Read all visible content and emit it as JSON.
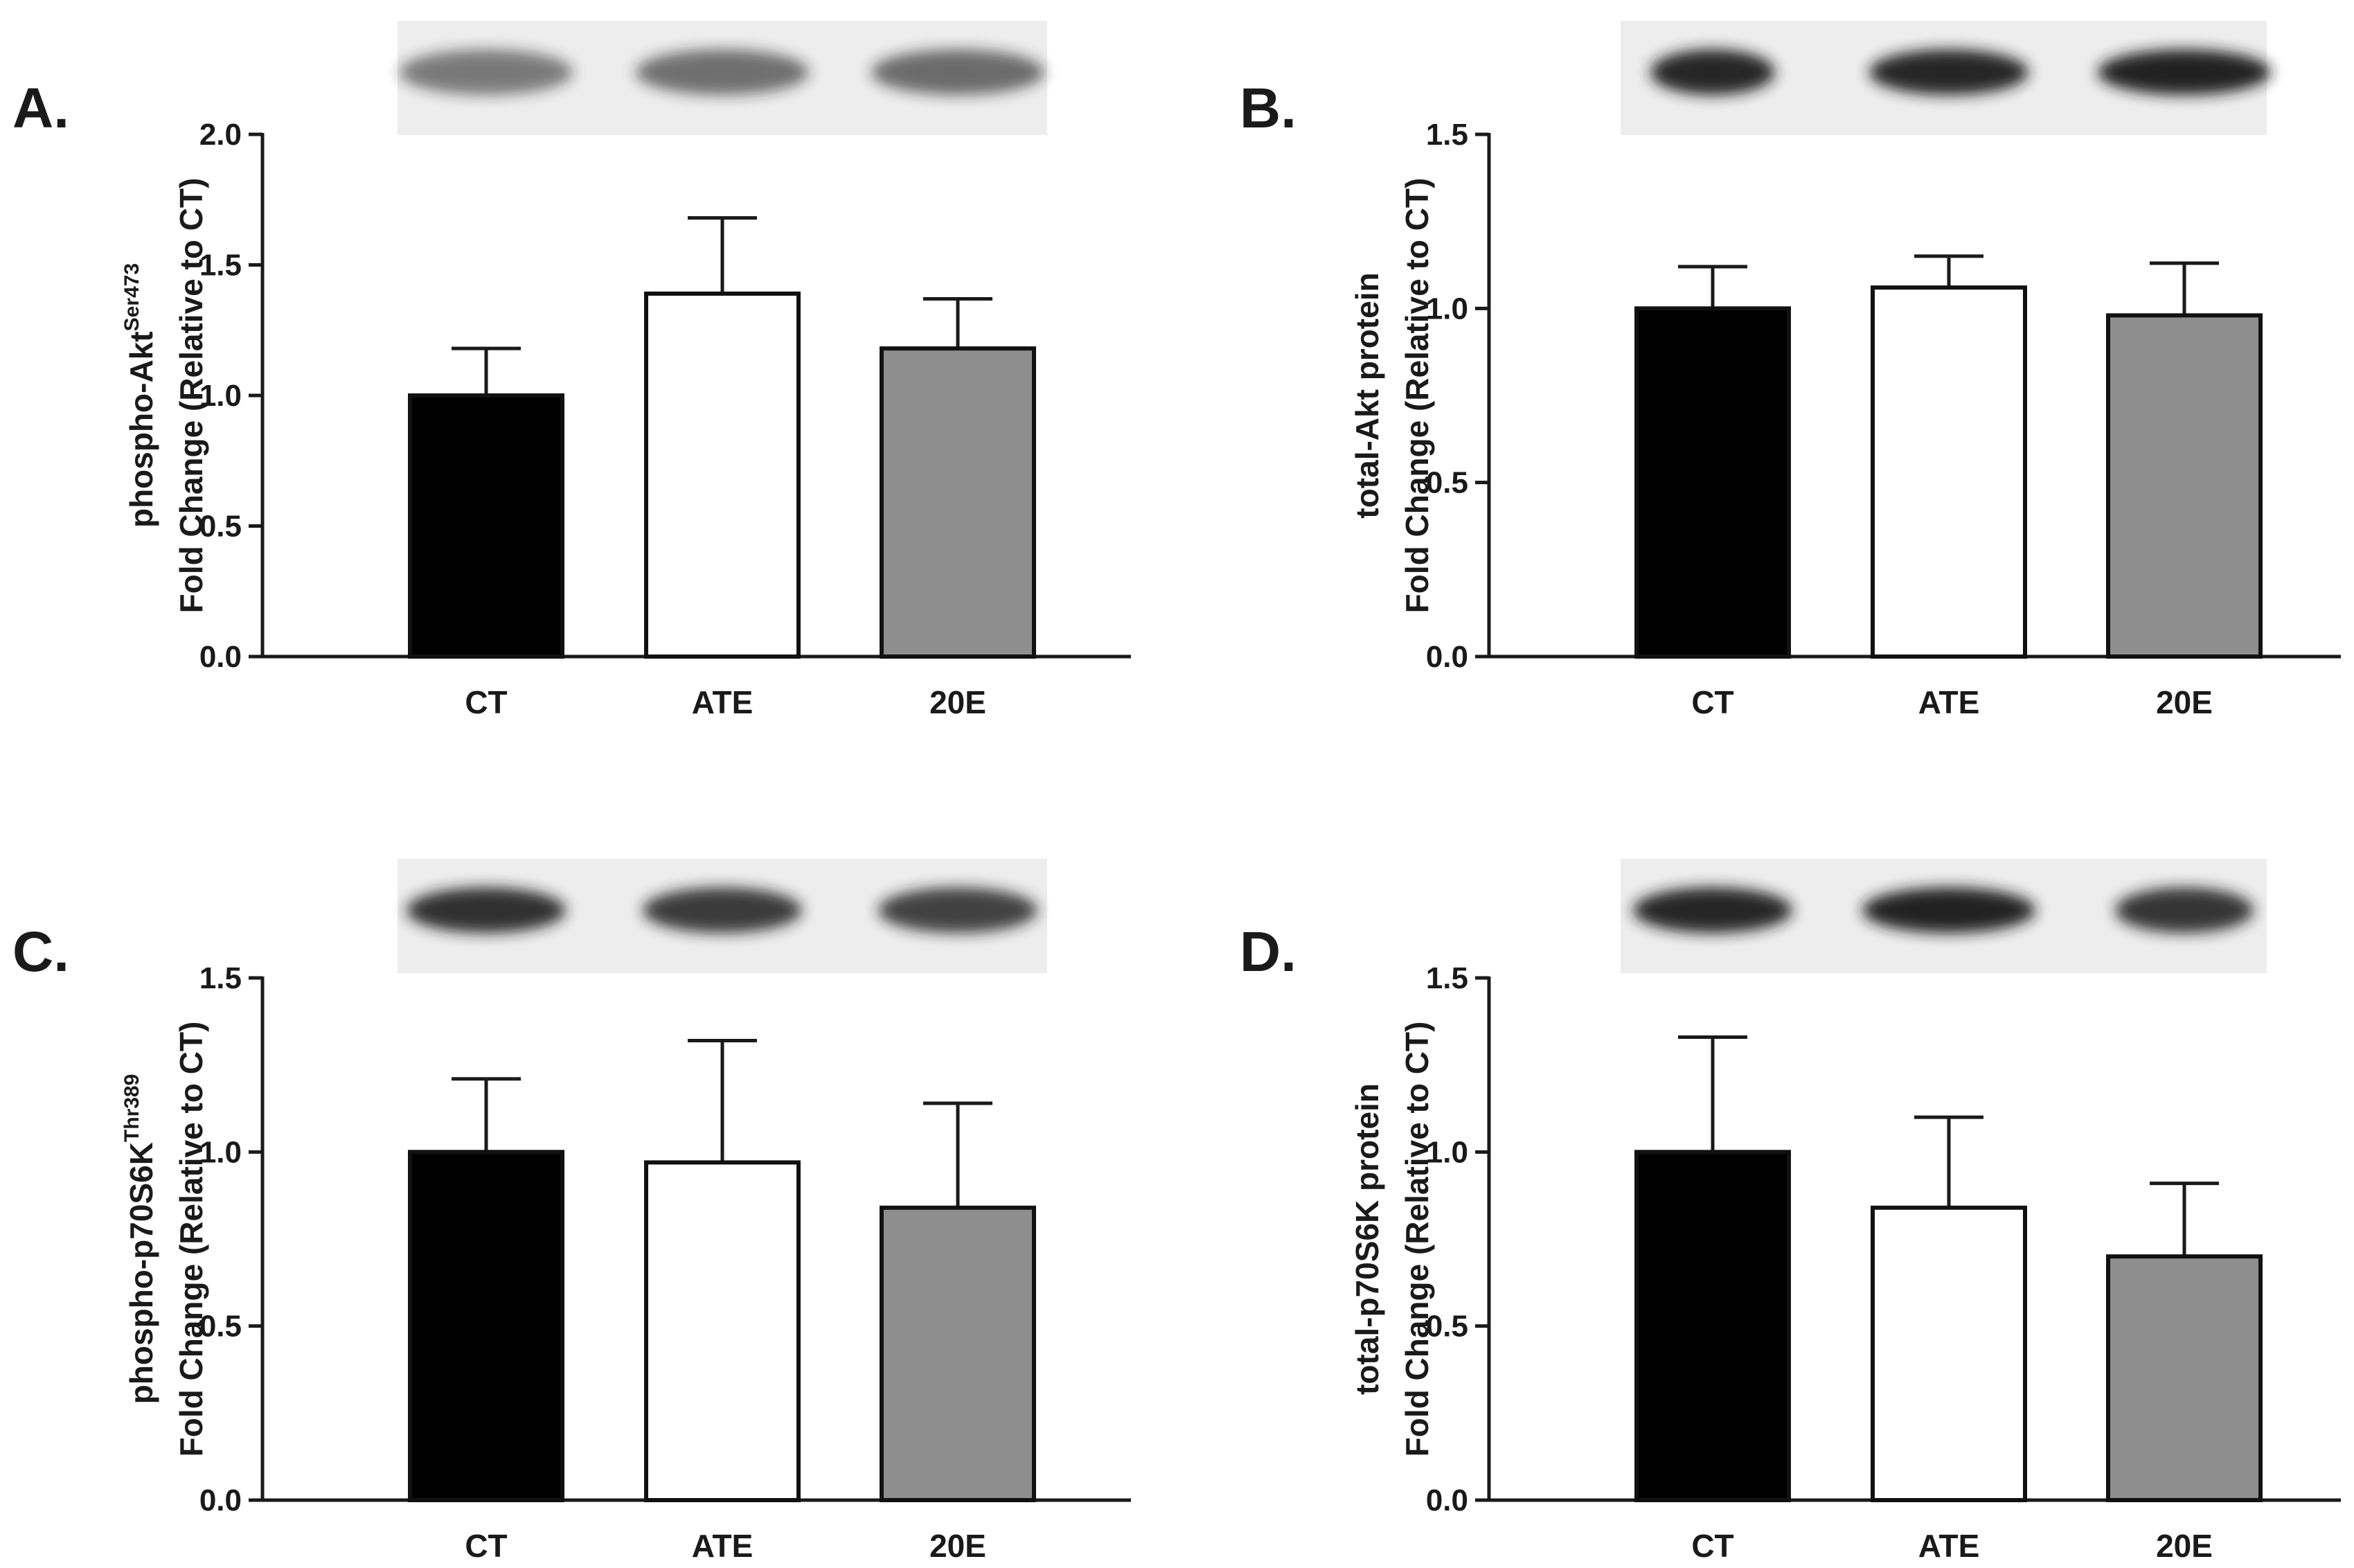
{
  "colors": {
    "CT": "#000000",
    "ATE": "#ffffff",
    "20E": "#8e8e8e",
    "blot_background": "#ededed",
    "blot_band": "#1c1c1c"
  },
  "chart_data": [
    {
      "type": "bar",
      "panel": "A.",
      "ylabel_line1": "phospho-Akt",
      "ylabel_line1_sup": "Ser473",
      "ylabel_line2": "Fold Change (Relative to CT)",
      "categories": [
        "CT",
        "ATE",
        "20E"
      ],
      "values": [
        1.0,
        1.39,
        1.18
      ],
      "errors": [
        0.18,
        0.29,
        0.19
      ],
      "ylim": [
        0,
        2.0
      ],
      "yticks": [
        "0.0",
        "0.5",
        "1.0",
        "1.5",
        "2.0"
      ],
      "blot_intensity": [
        0.55,
        0.6,
        0.62
      ]
    },
    {
      "type": "bar",
      "panel": "B.",
      "ylabel_line1": "total-Akt protein",
      "ylabel_line1_sup": "",
      "ylabel_line2": "Fold Change (Relative to CT)",
      "categories": [
        "CT",
        "ATE",
        "20E"
      ],
      "values": [
        1.0,
        1.06,
        0.98
      ],
      "errors": [
        0.12,
        0.09,
        0.15
      ],
      "ylim": [
        0,
        1.5
      ],
      "yticks": [
        "0.0",
        "0.5",
        "1.0",
        "1.5"
      ],
      "blot_intensity": [
        0.95,
        0.95,
        0.97
      ]
    },
    {
      "type": "bar",
      "panel": "C.",
      "ylabel_line1": "phospho-p70S6K",
      "ylabel_line1_sup": "Thr389",
      "ylabel_line2": "Fold Change (Relative to CT)",
      "categories": [
        "CT",
        "ATE",
        "20E"
      ],
      "values": [
        1.0,
        0.97,
        0.84
      ],
      "errors": [
        0.21,
        0.35,
        0.3
      ],
      "ylim": [
        0,
        1.5
      ],
      "yticks": [
        "0.0",
        "0.5",
        "1.0",
        "1.5"
      ],
      "blot_intensity": [
        0.9,
        0.85,
        0.82
      ]
    },
    {
      "type": "bar",
      "panel": "D.",
      "ylabel_line1": "total-p70S6K protein",
      "ylabel_line1_sup": "",
      "ylabel_line2": "Fold Change (Relative to CT)",
      "categories": [
        "CT",
        "ATE",
        "20E"
      ],
      "values": [
        1.0,
        0.84,
        0.7
      ],
      "errors": [
        0.33,
        0.26,
        0.21
      ],
      "ylim": [
        0,
        1.5
      ],
      "yticks": [
        "0.0",
        "0.5",
        "1.0",
        "1.5"
      ],
      "blot_intensity": [
        0.95,
        0.97,
        0.88
      ]
    }
  ]
}
